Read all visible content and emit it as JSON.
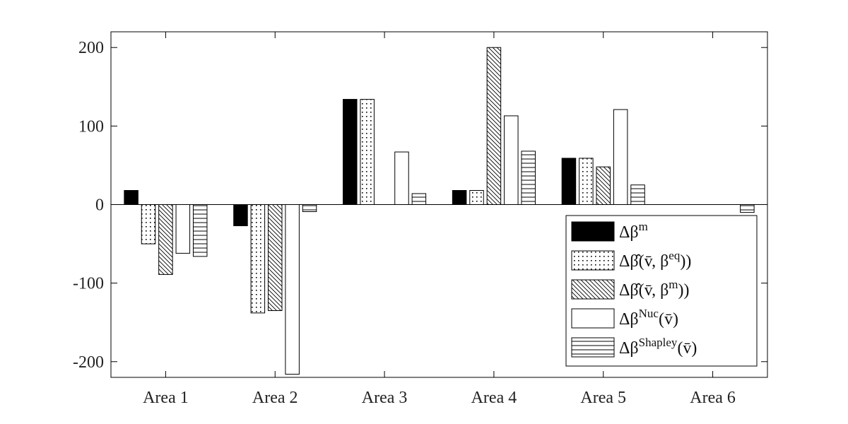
{
  "chart_data": {
    "type": "bar",
    "title": "",
    "xlabel": "",
    "ylabel": "",
    "ylim": [
      -220,
      220
    ],
    "yticks": [
      -200,
      -100,
      0,
      100,
      200
    ],
    "ytick_labels": [
      "-200",
      "-100",
      "0",
      "100",
      "200"
    ],
    "categories": [
      "Area 1",
      "Area 2",
      "Area 3",
      "Area 4",
      "Area 5",
      "Area 6"
    ],
    "legend_position": "lower-right",
    "grid": false,
    "series": [
      {
        "name": "Δβ^m",
        "fill": "solid-black",
        "values": [
          18,
          -27,
          134,
          18,
          59,
          0
        ]
      },
      {
        "name": "Δβ̂(v̄, β^eq))",
        "fill": "dots",
        "values": [
          -50,
          -138,
          134,
          18,
          59,
          0
        ]
      },
      {
        "name": "Δβ̂(v̄, β^m))",
        "fill": "diagonal-hatch",
        "values": [
          -89,
          -135,
          0,
          200,
          48,
          0
        ]
      },
      {
        "name": "Δβ^Nuc(v̄)",
        "fill": "white",
        "values": [
          -62,
          -216,
          67,
          113,
          121,
          0
        ]
      },
      {
        "name": "Δβ^Shapley(v̄)",
        "fill": "horizontal-lines",
        "values": [
          -66,
          -9,
          14,
          68,
          25,
          -10
        ]
      }
    ],
    "legend": {
      "entries": [
        {
          "pre": "Δβ",
          "sup": "m",
          "post": ""
        },
        {
          "pre": "Δβ̂(v̄, β",
          "sup": "eq",
          "post": "))"
        },
        {
          "pre": "Δβ̂(v̄, β",
          "sup": "m",
          "post": "))"
        },
        {
          "pre": "Δβ",
          "sup": "Nuc",
          "post": "(v̄)"
        },
        {
          "pre": "Δβ",
          "sup": "Shapley",
          "post": "(v̄)"
        }
      ]
    }
  }
}
